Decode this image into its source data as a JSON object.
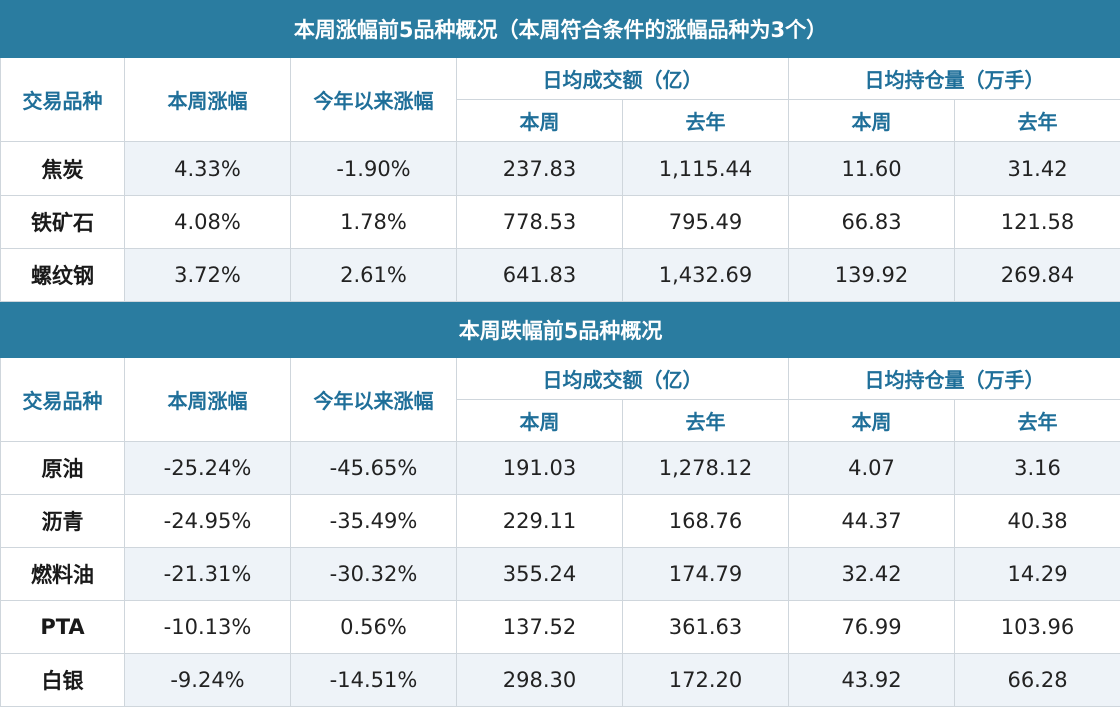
{
  "gain_section": {
    "title": "本周涨幅前5品种概况（本周符合条件的涨幅品种为3个）",
    "rows": [
      {
        "name": "焦炭",
        "week_change": "4.33%",
        "ytd_change": "-1.90%",
        "vol_week": "237.83",
        "vol_last_year": "1,115.44",
        "oi_week": "11.60",
        "oi_last_year": "31.42"
      },
      {
        "name": "铁矿石",
        "week_change": "4.08%",
        "ytd_change": "1.78%",
        "vol_week": "778.53",
        "vol_last_year": "795.49",
        "oi_week": "66.83",
        "oi_last_year": "121.58"
      },
      {
        "name": "螺纹钢",
        "week_change": "3.72%",
        "ytd_change": "2.61%",
        "vol_week": "641.83",
        "vol_last_year": "1,432.69",
        "oi_week": "139.92",
        "oi_last_year": "269.84"
      }
    ]
  },
  "loss_section": {
    "title": "本周跌幅前5品种概况",
    "rows": [
      {
        "name": "原油",
        "week_change": "-25.24%",
        "ytd_change": "-45.65%",
        "vol_week": "191.03",
        "vol_last_year": "1,278.12",
        "oi_week": "4.07",
        "oi_last_year": "3.16"
      },
      {
        "name": "沥青",
        "week_change": "-24.95%",
        "ytd_change": "-35.49%",
        "vol_week": "229.11",
        "vol_last_year": "168.76",
        "oi_week": "44.37",
        "oi_last_year": "40.38"
      },
      {
        "name": "燃料油",
        "week_change": "-21.31%",
        "ytd_change": "-30.32%",
        "vol_week": "355.24",
        "vol_last_year": "174.79",
        "oi_week": "32.42",
        "oi_last_year": "14.29"
      },
      {
        "name": "PTA",
        "week_change": "-10.13%",
        "ytd_change": "0.56%",
        "vol_week": "137.52",
        "vol_last_year": "361.63",
        "oi_week": "76.99",
        "oi_last_year": "103.96"
      },
      {
        "name": "白银",
        "week_change": "-9.24%",
        "ytd_change": "-14.51%",
        "vol_week": "298.30",
        "vol_last_year": "172.20",
        "oi_week": "43.92",
        "oi_last_year": "66.28"
      }
    ]
  },
  "headers": {
    "variety": "交易品种",
    "week_change": "本周涨幅",
    "ytd_change": "今年以来涨幅",
    "avg_volume": "日均成交额（亿）",
    "avg_open_interest": "日均持仓量（万手）",
    "this_week": "本周",
    "last_year": "去年"
  },
  "colors": {
    "title_bg": "#2a7ca0",
    "header_text": "#1f6f99",
    "stripe": "#eef3f8"
  }
}
